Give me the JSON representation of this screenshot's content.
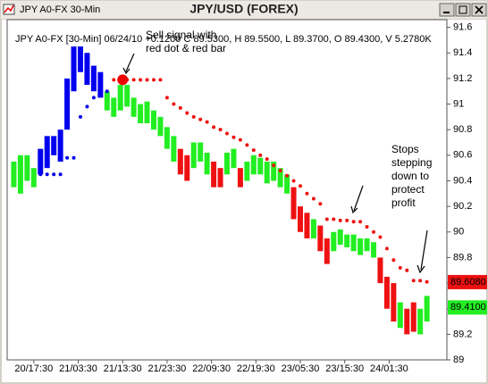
{
  "window_title": "JPY A0-FX 30-Min",
  "chart_data": {
    "type": "range-bar",
    "title": "JPY/USD (FOREX)",
    "info": "JPY A0-FX [30-Min] 06/24/10 +0.1200 C 89.5300, H 89.5500, L 89.3700, O 89.4300, V 5.2780K",
    "xlim": [
      -2,
      196
    ],
    "xticks": [
      {
        "value": 10,
        "label": "20/17:30"
      },
      {
        "value": 30,
        "label": "21/03:30"
      },
      {
        "value": 50,
        "label": "21/13:30"
      },
      {
        "value": 70,
        "label": "21/23:30"
      },
      {
        "value": 90,
        "label": "22/09:30"
      },
      {
        "value": 110,
        "label": "22/19:30"
      },
      {
        "value": 130,
        "label": "23/05:30"
      },
      {
        "value": 150,
        "label": "23/15:30"
      },
      {
        "value": 170,
        "label": "24/01:30"
      }
    ],
    "ylim": [
      89,
      91.66
    ],
    "yticks": [
      89,
      89.2,
      89.4,
      89.6,
      89.8,
      90,
      90.2,
      90.4,
      90.6,
      90.8,
      91,
      91.2,
      91.4,
      91.6
    ],
    "series": [
      {
        "color": "#0000ee",
        "x": [
          13,
          16,
          19,
          22,
          25,
          28,
          31,
          34,
          37,
          40
        ],
        "high": [
          90.65,
          90.75,
          90.75,
          90.8,
          91.2,
          91.45,
          91.45,
          91.4,
          91.3,
          91.25
        ],
        "low": [
          90.45,
          90.5,
          90.6,
          90.55,
          90.8,
          91.1,
          91.25,
          91.15,
          91.1,
          91.05
        ]
      },
      {
        "color": "#22ee22",
        "x": [
          1,
          4,
          7,
          10,
          43,
          46,
          49,
          52,
          55,
          58,
          61,
          64,
          67,
          70,
          73,
          82,
          85,
          88,
          97,
          100,
          106,
          109,
          112,
          115,
          118,
          121,
          124,
          136,
          145,
          148,
          151,
          154,
          157,
          160,
          163,
          175,
          184,
          187
        ],
        "high": [
          90.55,
          90.6,
          90.6,
          90.5,
          91.1,
          91.05,
          91.15,
          91.15,
          91.05,
          91.0,
          91.02,
          90.95,
          90.9,
          90.82,
          90.75,
          90.7,
          90.7,
          90.62,
          90.62,
          90.65,
          90.55,
          90.6,
          90.58,
          90.55,
          90.55,
          90.5,
          90.45,
          90.1,
          90.0,
          90.02,
          89.98,
          89.98,
          89.95,
          89.95,
          89.92,
          89.45,
          89.4,
          89.5
        ],
        "low": [
          90.35,
          90.3,
          90.4,
          90.35,
          90.95,
          90.9,
          90.95,
          90.98,
          90.9,
          90.85,
          90.85,
          90.8,
          90.75,
          90.65,
          90.55,
          90.5,
          90.55,
          90.45,
          90.45,
          90.5,
          90.4,
          90.45,
          90.45,
          90.38,
          90.4,
          90.35,
          90.3,
          89.95,
          89.85,
          89.9,
          89.88,
          89.85,
          89.82,
          89.85,
          89.8,
          89.25,
          89.2,
          89.3
        ]
      },
      {
        "color": "#ee1111",
        "x": [
          76,
          79,
          91,
          94,
          103,
          127,
          130,
          133,
          139,
          142,
          166,
          169,
          172,
          178,
          181
        ],
        "high": [
          90.65,
          90.6,
          90.55,
          90.5,
          90.5,
          90.35,
          90.2,
          90.15,
          90.05,
          89.95,
          89.8,
          89.65,
          89.6,
          89.4,
          89.45
        ],
        "low": [
          90.45,
          90.4,
          90.35,
          90.35,
          90.35,
          90.1,
          90.0,
          89.95,
          89.85,
          89.75,
          89.6,
          89.4,
          89.3,
          89.2,
          89.22
        ]
      }
    ],
    "stops": [
      {
        "color": "#0000ee",
        "x": [
          13,
          16,
          19,
          22,
          25,
          28,
          31,
          34,
          37,
          40,
          43
        ],
        "values": [
          90.45,
          90.45,
          90.45,
          90.45,
          90.58,
          90.58,
          90.9,
          90.98,
          91.05,
          91.07,
          91.1
        ]
      },
      {
        "color": "#ee1111",
        "x": [
          46,
          49,
          52,
          55,
          58,
          61,
          64,
          67,
          70,
          73,
          76,
          79,
          82,
          85,
          88,
          91,
          94,
          97,
          100,
          103,
          106,
          109,
          112,
          115,
          118,
          121,
          124,
          127,
          130,
          133,
          136,
          139,
          142,
          145,
          148,
          151,
          154,
          157,
          160,
          163,
          166,
          169,
          172,
          175,
          178,
          181,
          184,
          187
        ],
        "values": [
          91.19,
          91.19,
          91.19,
          91.19,
          91.19,
          91.19,
          91.19,
          91.19,
          91.05,
          91.0,
          90.97,
          90.93,
          90.9,
          90.88,
          90.86,
          90.82,
          90.8,
          90.77,
          90.74,
          90.72,
          90.68,
          90.64,
          90.6,
          90.57,
          90.52,
          90.48,
          90.44,
          90.4,
          90.36,
          90.3,
          90.26,
          90.22,
          90.1,
          90.1,
          90.09,
          90.09,
          90.08,
          90.08,
          90.04,
          90.0,
          89.96,
          89.87,
          89.78,
          89.72,
          89.7,
          89.62,
          89.62,
          89.61
        ]
      }
    ],
    "signal": {
      "x": 50,
      "value": 91.19,
      "color": "#ee0000"
    },
    "last_labels": [
      {
        "value": 89.608,
        "label": "89.6080",
        "color": "#ee1111"
      },
      {
        "value": 89.41,
        "label": "89.4100",
        "color": "#22ee22"
      }
    ],
    "annotations": [
      {
        "lines": [
          "Sell signal with",
          "red dot & red bar"
        ]
      },
      {
        "lines": [
          "Stops",
          "stepping",
          "down to",
          "protect",
          "profit"
        ]
      }
    ]
  }
}
